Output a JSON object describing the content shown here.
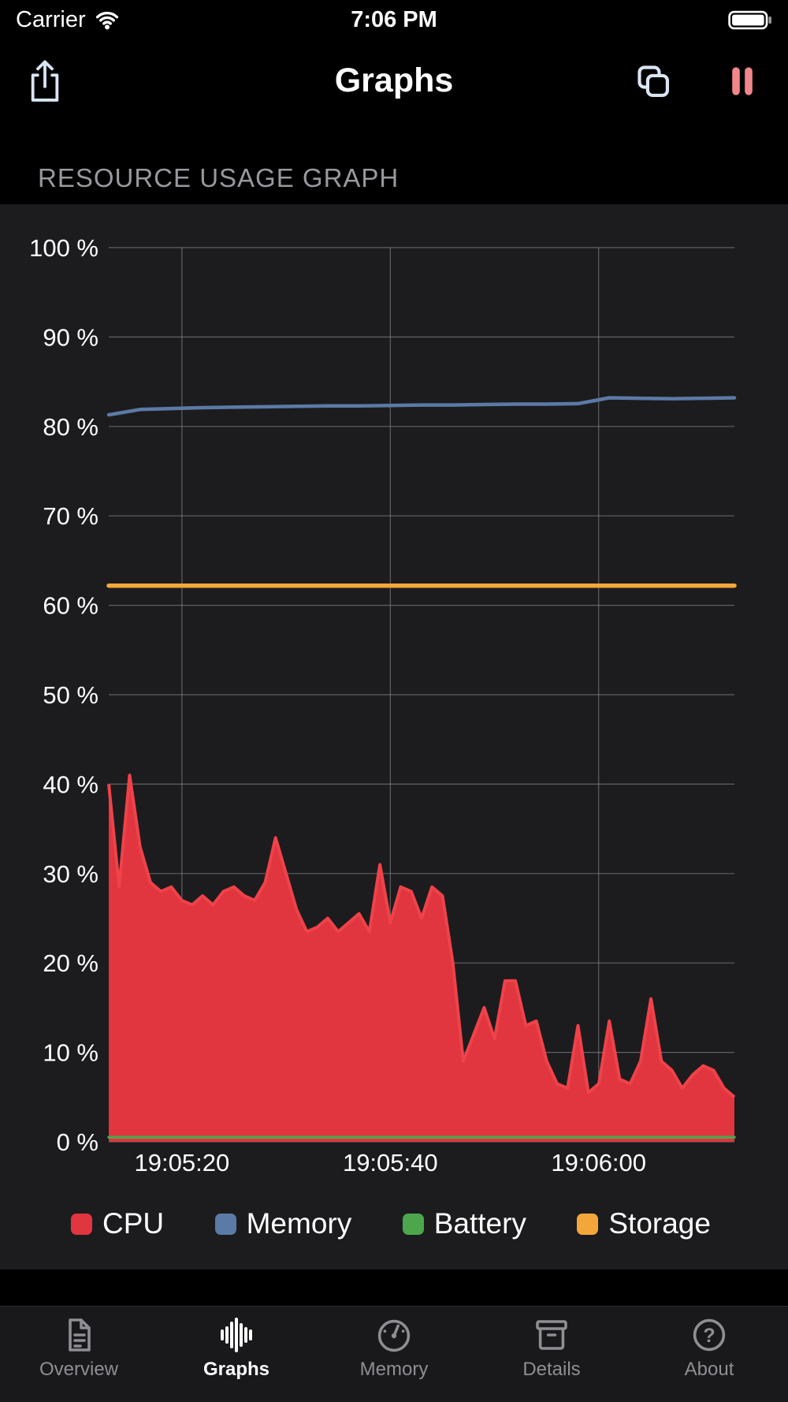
{
  "status_bar": {
    "carrier": "Carrier",
    "time": "7:06 PM",
    "battery_state": "full"
  },
  "nav": {
    "title": "Graphs",
    "icon_color": "#d9e4f4",
    "pause_color": "#f0868c"
  },
  "section": {
    "header": "RESOURCE USAGE GRAPH"
  },
  "chart_data": {
    "type": "area",
    "title": "RESOURCE USAGE GRAPH",
    "grid": true,
    "legend_position": "bottom",
    "ylim": [
      0,
      100
    ],
    "yticks": [
      100,
      90,
      80,
      70,
      60,
      50,
      40,
      30,
      20,
      10,
      0
    ],
    "ytick_suffix": " %",
    "xticks": [
      {
        "label": "19:05:20",
        "pos": 0.117
      },
      {
        "label": "19:05:40",
        "pos": 0.45
      },
      {
        "label": "19:06:00",
        "pos": 0.783
      }
    ],
    "series": [
      {
        "name": "CPU",
        "type": "area",
        "color": "#e1353f",
        "stroke": "#ef4249",
        "width": 4,
        "values": [
          40,
          28.5,
          41,
          33,
          29,
          28,
          28.5,
          27,
          26.5,
          27.5,
          26.5,
          28,
          28.5,
          27.5,
          27,
          29,
          34,
          30,
          26,
          23.5,
          24,
          25,
          23.5,
          24.5,
          25.5,
          23.5,
          31,
          24.5,
          28.5,
          28,
          25,
          28.5,
          27.5,
          20,
          9,
          12,
          15,
          11.5,
          18,
          18,
          13,
          13.5,
          9,
          6.5,
          6,
          13,
          5.5,
          6.5,
          13.5,
          7,
          6.5,
          9,
          16,
          9,
          8,
          6,
          7.5,
          8.5,
          8,
          6,
          5
        ]
      },
      {
        "name": "Memory",
        "type": "line",
        "color": "#5b7aa6",
        "width": 4.5,
        "values": [
          81.3,
          81.9,
          82.0,
          82.1,
          82.15,
          82.2,
          82.25,
          82.3,
          82.3,
          82.35,
          82.4,
          82.4,
          82.45,
          82.5,
          82.5,
          82.55,
          83.2,
          83.15,
          83.1,
          83.15,
          83.2
        ]
      },
      {
        "name": "Battery",
        "type": "line",
        "color": "#4ca64c",
        "width": 3.5,
        "values": [
          0.5,
          0.5
        ]
      },
      {
        "name": "Storage",
        "type": "line",
        "color": "#f3a73a",
        "width": 5.5,
        "values": [
          62.2,
          62.2
        ]
      }
    ]
  },
  "tab_bar": {
    "about_glyph": "?",
    "items": [
      {
        "label": "Overview",
        "icon": "document-icon",
        "active": false
      },
      {
        "label": "Graphs",
        "icon": "waveform-icon",
        "active": true
      },
      {
        "label": "Memory",
        "icon": "gauge-icon",
        "active": false
      },
      {
        "label": "Details",
        "icon": "archivebox-icon",
        "active": false
      },
      {
        "label": "About",
        "icon": "question-circle-icon",
        "active": false
      }
    ]
  }
}
